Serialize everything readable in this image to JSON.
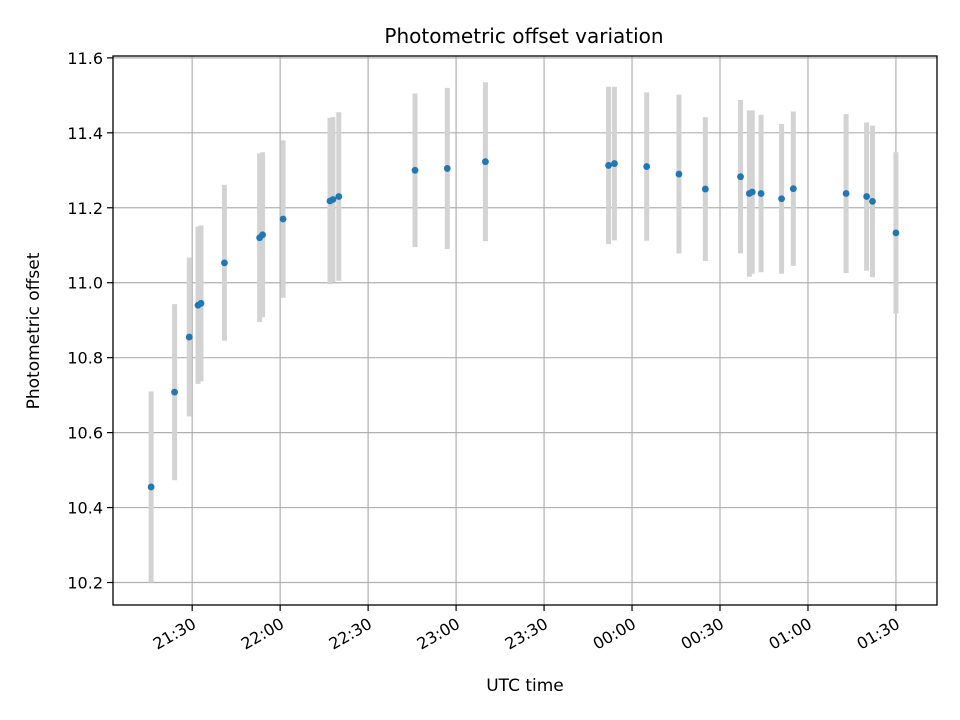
{
  "chart_data": {
    "type": "scatter",
    "title": "Photometric offset variation",
    "xlabel": "UTC time",
    "ylabel": "Photometric offset",
    "xlim": [
      "21:03",
      "01:44"
    ],
    "ylim": [
      10.14,
      11.605
    ],
    "grid": true,
    "colors": {
      "points": "#1f77b4",
      "errorbars": "#d3d3d3",
      "grid": "#b0b0b0"
    },
    "x_ticks": [
      "21:30",
      "22:00",
      "22:30",
      "23:00",
      "23:30",
      "00:00",
      "00:30",
      "01:00",
      "01:30"
    ],
    "y_ticks": [
      "10.2",
      "10.4",
      "10.6",
      "10.8",
      "11.0",
      "11.2",
      "11.4",
      "11.6"
    ],
    "points": [
      {
        "x": "21:16",
        "y": 10.455,
        "err": 0.255
      },
      {
        "x": "21:24",
        "y": 10.708,
        "err": 0.235
      },
      {
        "x": "21:29",
        "y": 10.855,
        "err": 0.212
      },
      {
        "x": "21:32",
        "y": 10.94,
        "err": 0.21
      },
      {
        "x": "21:33",
        "y": 10.945,
        "err": 0.208
      },
      {
        "x": "21:41",
        "y": 11.053,
        "err": 0.208
      },
      {
        "x": "21:53",
        "y": 11.12,
        "err": 0.225
      },
      {
        "x": "21:54",
        "y": 11.128,
        "err": 0.22
      },
      {
        "x": "22:01",
        "y": 11.17,
        "err": 0.21
      },
      {
        "x": "22:17",
        "y": 11.218,
        "err": 0.222
      },
      {
        "x": "22:18",
        "y": 11.222,
        "err": 0.22
      },
      {
        "x": "22:20",
        "y": 11.23,
        "err": 0.225
      },
      {
        "x": "22:46",
        "y": 11.3,
        "err": 0.205
      },
      {
        "x": "22:57",
        "y": 11.305,
        "err": 0.215
      },
      {
        "x": "23:10",
        "y": 11.323,
        "err": 0.212
      },
      {
        "x": "23:52",
        "y": 11.313,
        "err": 0.21
      },
      {
        "x": "23:54",
        "y": 11.318,
        "err": 0.205
      },
      {
        "x": "00:05",
        "y": 11.31,
        "err": 0.198
      },
      {
        "x": "00:16",
        "y": 11.29,
        "err": 0.212
      },
      {
        "x": "00:25",
        "y": 11.25,
        "err": 0.192
      },
      {
        "x": "00:37",
        "y": 11.283,
        "err": 0.205
      },
      {
        "x": "00:40",
        "y": 11.238,
        "err": 0.222
      },
      {
        "x": "00:41",
        "y": 11.242,
        "err": 0.218
      },
      {
        "x": "00:44",
        "y": 11.238,
        "err": 0.21
      },
      {
        "x": "00:51",
        "y": 11.224,
        "err": 0.2
      },
      {
        "x": "00:55",
        "y": 11.251,
        "err": 0.206
      },
      {
        "x": "01:13",
        "y": 11.238,
        "err": 0.212
      },
      {
        "x": "01:20",
        "y": 11.23,
        "err": 0.198
      },
      {
        "x": "01:22",
        "y": 11.217,
        "err": 0.202
      },
      {
        "x": "01:30",
        "y": 11.133,
        "err": 0.215
      }
    ]
  }
}
